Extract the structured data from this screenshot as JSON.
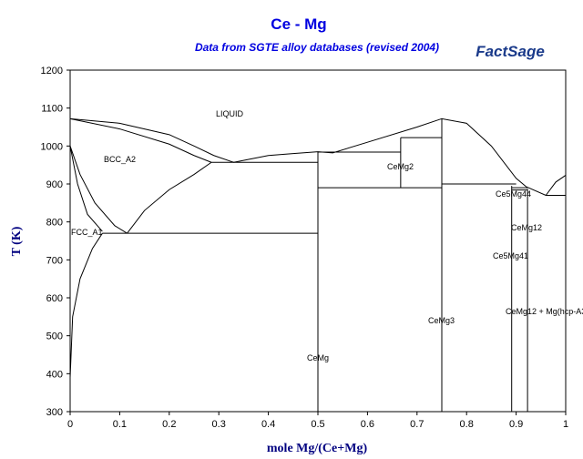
{
  "chart_data": {
    "type": "line",
    "title": "Ce - Mg",
    "subtitle": "Data from SGTE alloy databases (revised 2004)",
    "logo": "FactSage",
    "xlabel": "mole Mg/(Ce+Mg)",
    "ylabel": "T (K)",
    "xlim": [
      0,
      1
    ],
    "ylim": [
      300,
      1200
    ],
    "xticks": [
      0,
      0.1,
      0.2,
      0.3,
      0.4,
      0.5,
      0.6,
      0.7,
      0.8,
      0.9,
      1
    ],
    "yticks": [
      300,
      400,
      500,
      600,
      700,
      800,
      900,
      1000,
      1100,
      1200
    ],
    "annotations": [
      "LIQUID",
      "BCC_A2",
      "FCC_A1",
      "CeMg2",
      "Ce5Mg44",
      "CeMg12",
      "Ce5Mg41",
      "CeMg3",
      "CeMg",
      "CeMg12 + Mg(hcp-A3"
    ],
    "series": [
      {
        "color": "#000000",
        "x": [
          0,
          0.1,
          0.2,
          0.25,
          0.29,
          0.33
        ],
        "values": [
          1072,
          1060,
          1030,
          1000,
          975,
          957
        ]
      },
      {
        "color": "#000000",
        "x": [
          0,
          0.1,
          0.2,
          0.25,
          0.285
        ],
        "values": [
          1072,
          1045,
          1005,
          975,
          957
        ]
      },
      {
        "color": "#000000",
        "x": [
          0.285,
          0.5
        ],
        "values": [
          957,
          957
        ]
      },
      {
        "color": "#000000",
        "x": [
          0.33,
          0.4,
          0.45,
          0.5,
          0.53,
          0.6,
          0.7,
          0.75,
          0.8,
          0.85,
          0.9,
          0.92
        ],
        "values": [
          957,
          975,
          980,
          985,
          982,
          1010,
          1050,
          1072,
          1060,
          1000,
          915,
          893
        ]
      },
      {
        "color": "#000000",
        "x": [
          0,
          0.02,
          0.05,
          0.09,
          0.115
        ],
        "values": [
          1000,
          925,
          850,
          790,
          770
        ]
      },
      {
        "color": "#000000",
        "x": [
          0,
          0.015,
          0.035,
          0.065
        ],
        "values": [
          1000,
          900,
          820,
          775
        ]
      },
      {
        "color": "#000000",
        "x": [
          0.115,
          0.15,
          0.2,
          0.25,
          0.285
        ],
        "values": [
          770,
          830,
          885,
          925,
          957
        ]
      },
      {
        "color": "#000000",
        "x": [
          0,
          0.005,
          0.02,
          0.045,
          0.065
        ],
        "values": [
          390,
          550,
          650,
          730,
          770
        ]
      },
      {
        "color": "#000000",
        "x": [
          0.065,
          0.5
        ],
        "values": [
          770,
          770
        ]
      },
      {
        "color": "#000000",
        "x": [
          0.5,
          0.5
        ],
        "values": [
          300,
          985
        ]
      },
      {
        "color": "#000000",
        "x": [
          0.5,
          0.667
        ],
        "values": [
          984,
          984
        ]
      },
      {
        "color": "#000000",
        "x": [
          0.667,
          0.667
        ],
        "values": [
          890,
          1022
        ]
      },
      {
        "color": "#000000",
        "x": [
          0.667,
          0.75
        ],
        "values": [
          1022,
          1022
        ]
      },
      {
        "color": "#000000",
        "x": [
          0.5,
          0.75
        ],
        "values": [
          890,
          890
        ]
      },
      {
        "color": "#000000",
        "x": [
          0.75,
          0.75
        ],
        "values": [
          300,
          1072
        ]
      },
      {
        "color": "#000000",
        "x": [
          0.75,
          0.9
        ],
        "values": [
          900,
          900
        ]
      },
      {
        "color": "#000000",
        "x": [
          0.891,
          0.891
        ],
        "values": [
          300,
          895
        ]
      },
      {
        "color": "#000000",
        "x": [
          0.923,
          0.923
        ],
        "values": [
          300,
          887
        ]
      },
      {
        "color": "#000000",
        "x": [
          0.891,
          0.923
        ],
        "values": [
          890,
          890
        ]
      },
      {
        "color": "#000000",
        "x": [
          0.891,
          0.923
        ],
        "values": [
          884,
          884
        ]
      },
      {
        "color": "#000000",
        "x": [
          0.92,
          0.96,
          1
        ],
        "values": [
          893,
          870,
          870
        ]
      },
      {
        "color": "#000000",
        "x": [
          0.96,
          0.98,
          1
        ],
        "values": [
          870,
          905,
          923
        ]
      }
    ]
  }
}
